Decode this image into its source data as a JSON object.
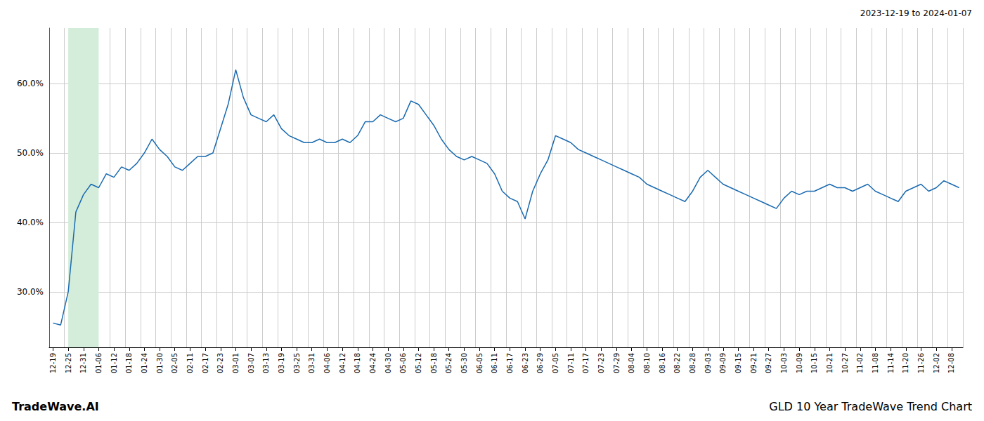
{
  "chart_data": {
    "type": "line",
    "title": "GLD 10 Year TradeWave Trend Chart",
    "subtitle": "2023-12-19 to 2024-01-07",
    "annotations": [
      "TradeWave.AI"
    ],
    "categories": [
      "12-19",
      null,
      "12-25",
      null,
      "12-31",
      null,
      "01-06",
      null,
      "01-12",
      null,
      "01-18",
      null,
      "01-24",
      null,
      "01-30",
      null,
      "02-05",
      null,
      "02-11",
      null,
      "02-17",
      null,
      "02-23",
      null,
      "03-01",
      null,
      "03-07",
      null,
      "03-13",
      null,
      "03-19",
      null,
      "03-25",
      null,
      "03-31",
      null,
      "04-06",
      null,
      "04-12",
      null,
      "04-18",
      null,
      "04-24",
      null,
      "04-30",
      null,
      "05-06",
      null,
      "05-12",
      null,
      "05-18",
      null,
      "05-24",
      null,
      "05-30",
      null,
      "06-05",
      null,
      "06-11",
      null,
      "06-17",
      null,
      "06-23",
      null,
      "06-29",
      null,
      "07-05",
      null,
      "07-11",
      null,
      "07-17",
      null,
      "07-23",
      null,
      "07-29",
      null,
      "08-04",
      null,
      "08-10",
      null,
      "08-16",
      null,
      "08-22",
      null,
      "08-28",
      null,
      "09-03",
      null,
      "09-09",
      null,
      "09-15",
      null,
      "09-21",
      null,
      "09-27",
      null,
      "10-03",
      null,
      "10-09",
      null,
      "10-15",
      null,
      "10-21",
      null,
      "10-27",
      null,
      "11-02",
      null,
      "11-08",
      null,
      "11-14",
      null,
      "11-20",
      null,
      "11-26",
      null,
      "12-02",
      null,
      "12-08",
      null
    ],
    "values": [
      25.5,
      25.2,
      30.0,
      41.5,
      44.0,
      45.5,
      45.0,
      47.0,
      46.5,
      48.0,
      47.5,
      48.5,
      50.0,
      52.0,
      50.5,
      49.5,
      48.0,
      47.5,
      48.5,
      49.5,
      49.5,
      50.0,
      53.5,
      57.0,
      62.0,
      58.0,
      55.5,
      55.0,
      54.5,
      55.5,
      53.5,
      52.5,
      52.0,
      51.5,
      51.5,
      52.0,
      51.5,
      51.5,
      52.0,
      51.5,
      52.5,
      54.5,
      54.5,
      55.5,
      55.0,
      54.5,
      55.0,
      57.5,
      57.0,
      55.5,
      54.0,
      52.0,
      50.5,
      49.5,
      49.0,
      49.5,
      49.0,
      48.5,
      47.0,
      44.5,
      43.5,
      43.0,
      40.5,
      44.5,
      47.0,
      49.0,
      52.5,
      52.0,
      51.5,
      50.5,
      50.0,
      49.5,
      49.0,
      48.5,
      48.0,
      47.5,
      47.0,
      46.5,
      45.5,
      45.0,
      44.5,
      44.0,
      43.5,
      43.0,
      44.5,
      46.5,
      47.5,
      46.5,
      45.5,
      45.0,
      44.5,
      44.0,
      43.5,
      43.0,
      42.5,
      42.0,
      43.5,
      44.5,
      44.0,
      44.5,
      44.5,
      45.0,
      45.5,
      45.0,
      45.0,
      44.5,
      45.0,
      45.5,
      44.5,
      44.0,
      43.5,
      43.0,
      44.5,
      45.0,
      45.5,
      44.5,
      45.0,
      46.0,
      45.5,
      45.0
    ],
    "color": "#1a6ab0",
    "highlight": {
      "from": "12-25",
      "to": "01-06",
      "color": "#d4edda"
    },
    "ylim": [
      22,
      68
    ],
    "yticks": [
      {
        "value": 30.0,
        "label": "30.0%"
      },
      {
        "value": 40.0,
        "label": "40.0%"
      },
      {
        "value": 50.0,
        "label": "50.0%"
      },
      {
        "value": 60.0,
        "label": "60.0%"
      }
    ],
    "grid": true
  }
}
